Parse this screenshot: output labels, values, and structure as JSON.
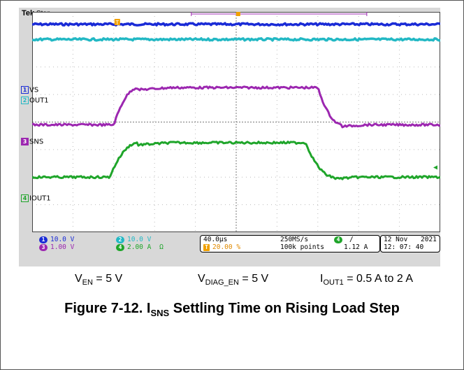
{
  "scope": {
    "brand": "Tek",
    "state": "Stop",
    "trigger_marker": "T",
    "channel_labels": [
      {
        "num": "1",
        "name": "VS",
        "color": "#1a2bd6"
      },
      {
        "num": "2",
        "name": "OUT1",
        "color": "#22b8c4"
      },
      {
        "num": "3",
        "name": "SNS",
        "color": "#9c27b0"
      },
      {
        "num": "4",
        "name": "IOUT1",
        "color": "#1fa52a"
      }
    ],
    "status": {
      "ch1": {
        "num": "1",
        "scale": "10.0 V"
      },
      "ch2": {
        "num": "2",
        "scale": "10.0 V"
      },
      "ch3": {
        "num": "3",
        "scale": "1.00 V"
      },
      "ch4": {
        "num": "4",
        "scale": "2.00 A",
        "bw": "Ω"
      },
      "timebase": "40.0µs",
      "trig_pos": "20.00 %",
      "sample_rate": "250MS/s",
      "record_length": "100k points",
      "trig_ch": "4",
      "trig_slope": "/",
      "trig_level": "1.12 A",
      "date": "12 Nov",
      "year": "2021",
      "time": "12: 07: 40"
    }
  },
  "chart_data": {
    "type": "line",
    "x_divisions": 10,
    "y_divisions": 8,
    "time_per_div": "40.0µs",
    "series": [
      {
        "name": "VS",
        "color": "#1a2bd6",
        "level_div": [
          3.55
        ]
      },
      {
        "name": "OUT1",
        "color": "#22b8c4",
        "level_div": [
          3.0
        ]
      },
      {
        "name": "SNS",
        "color": "#9c27b0",
        "low_div": -0.1,
        "high_div": 1.25,
        "rise_start_div": 2.0,
        "rise_end_div": 2.6,
        "fall_start_div": 7.0,
        "fall_end_div": 7.6
      },
      {
        "name": "IOUT1",
        "color": "#1fa52a",
        "low_div": -2.0,
        "high_div": -0.75,
        "rise_start_div": 1.9,
        "rise_end_div": 2.6,
        "fall_start_div": 6.7,
        "fall_end_div": 7.4
      }
    ]
  },
  "caption": {
    "v_en": "V",
    "v_en_sub": "EN",
    "v_en_val": " = 5 V",
    "v_diag": "V",
    "v_diag_sub": "DIAG_EN",
    "v_diag_val": " = 5 V",
    "i_out": "I",
    "i_out_sub": "OUT1",
    "i_out_val": " = 0.5 A to 2 A"
  },
  "title": {
    "prefix": "Figure 7-12. I",
    "sub": "SNS",
    "suffix": " Settling Time on Rising Load Step"
  }
}
